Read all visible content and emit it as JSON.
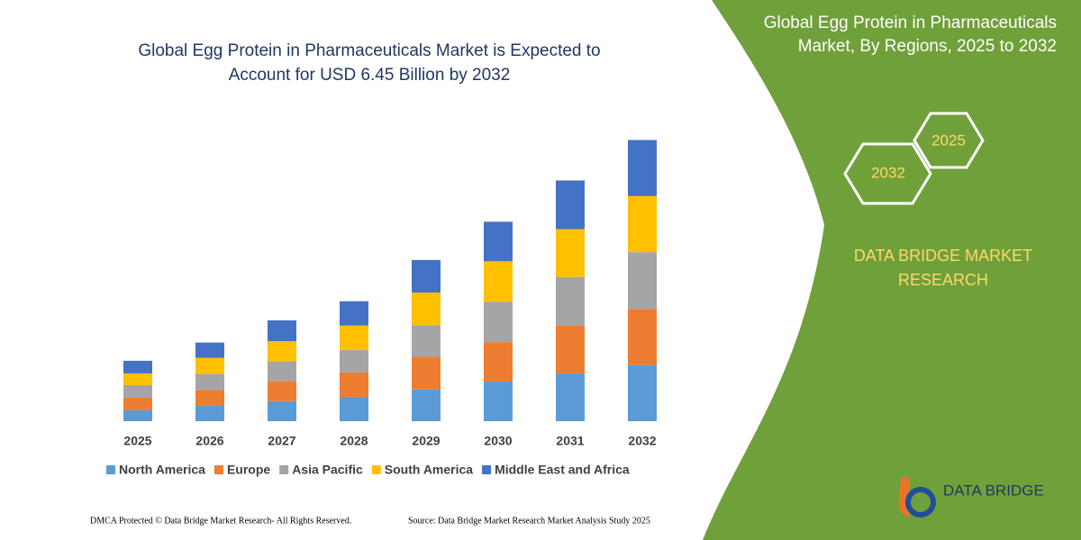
{
  "chart_data": {
    "type": "stacked_bar",
    "title": [
      "Global Egg Protein in Pharmaceuticals Market is Expected to",
      "Account for USD 6.45 Billion by 2032"
    ],
    "categories": [
      "2025",
      "2026",
      "2027",
      "2028",
      "2029",
      "2030",
      "2031",
      "2032"
    ],
    "series": [
      {
        "name": "North America",
        "color": "#5b9bd5",
        "values": [
          0.25,
          0.35,
          0.46,
          0.56,
          0.73,
          0.91,
          1.1,
          1.29
        ]
      },
      {
        "name": "Europe",
        "color": "#ed7d31",
        "values": [
          0.29,
          0.37,
          0.46,
          0.56,
          0.75,
          0.91,
          1.1,
          1.29
        ]
      },
      {
        "name": "Asia Pacific",
        "color": "#a5a5a5",
        "values": [
          0.29,
          0.37,
          0.46,
          0.52,
          0.73,
          0.93,
          1.12,
          1.31
        ]
      },
      {
        "name": "South America",
        "color": "#ffc000",
        "values": [
          0.27,
          0.37,
          0.46,
          0.56,
          0.75,
          0.93,
          1.1,
          1.29
        ]
      },
      {
        "name": "Middle East and Africa",
        "color": "#4472c4",
        "values": [
          0.29,
          0.35,
          0.48,
          0.56,
          0.75,
          0.91,
          1.12,
          1.29
        ]
      }
    ],
    "ylim": [
      0,
      7
    ],
    "grid": false,
    "legend": "bottom"
  },
  "panel": {
    "title": [
      "Global Egg Protein in Pharmaceuticals",
      "Market, By Regions, 2025 to 2032"
    ],
    "hex_labels": [
      "2025",
      "2032"
    ],
    "brand": [
      "DATA BRIDGE MARKET",
      "RESEARCH"
    ],
    "logo": "DATA BRIDGE"
  },
  "footer": {
    "left": "DMCA Protected © Data Bridge Market Research-  All Rights Reserved.",
    "right": "Source: Data Bridge Market Research  Market Analysis Study 2025"
  }
}
